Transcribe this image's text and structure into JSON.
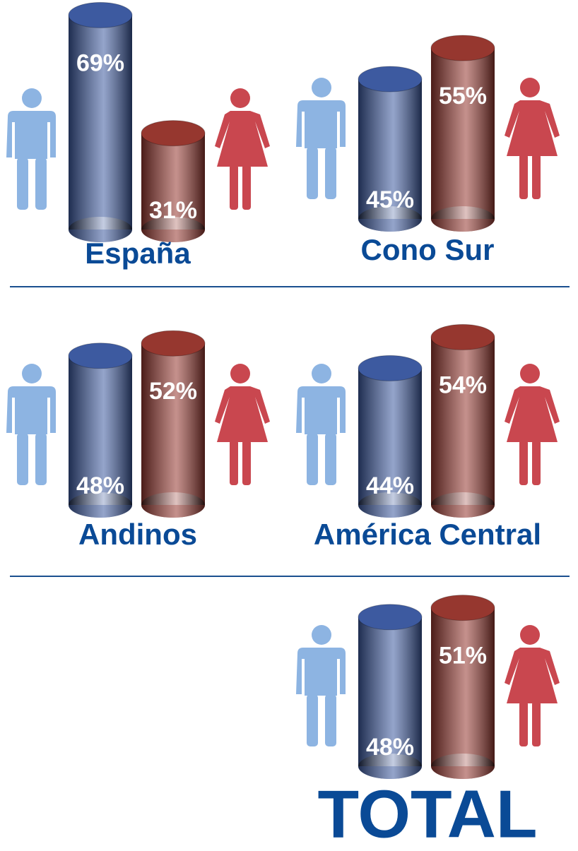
{
  "chart_data": [
    {
      "type": "bar",
      "title": "España",
      "values": [
        69,
        31
      ],
      "value_labels": [
        "69%",
        "31%"
      ],
      "colors": [
        "#3d5aa0",
        "#96372f"
      ]
    },
    {
      "type": "bar",
      "title": "Cono Sur",
      "values": [
        45,
        55
      ],
      "value_labels": [
        "45%",
        "55%"
      ],
      "colors": [
        "#3d5aa0",
        "#96372f"
      ]
    },
    {
      "type": "bar",
      "title": "Andinos",
      "values": [
        48,
        52
      ],
      "value_labels": [
        "48%",
        "52%"
      ],
      "colors": [
        "#3d5aa0",
        "#96372f"
      ]
    },
    {
      "type": "bar",
      "title": "América Central",
      "values": [
        44,
        54
      ],
      "value_labels": [
        "44%",
        "54%"
      ],
      "colors": [
        "#3d5aa0",
        "#96372f"
      ]
    },
    {
      "type": "bar",
      "title": "TOTAL",
      "values": [
        48,
        51
      ],
      "value_labels": [
        "48%",
        "51%"
      ],
      "colors": [
        "#3d5aa0",
        "#96372f"
      ]
    }
  ]
}
